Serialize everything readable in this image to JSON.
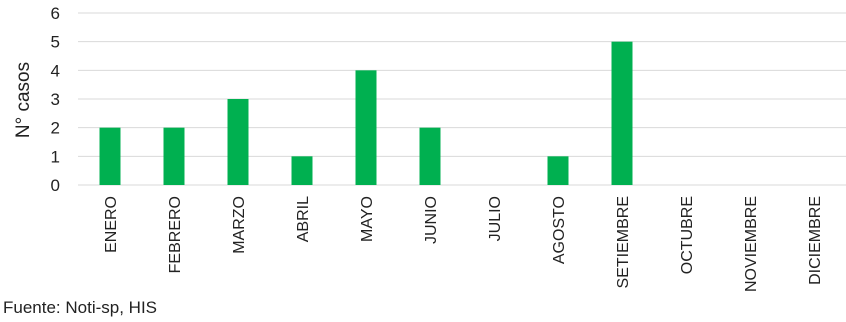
{
  "chart_data": {
    "type": "bar",
    "categories": [
      "ENERO",
      "FEBRERO",
      "MARZO",
      "ABRIL",
      "MAYO",
      "JUNIO",
      "JULIO",
      "AGOSTO",
      "SETIEMBRE",
      "OCTUBRE",
      "NOVIEMBRE",
      "DICIEMBRE"
    ],
    "values": [
      2,
      2,
      3,
      1,
      4,
      2,
      0,
      1,
      5,
      0,
      0,
      0
    ],
    "ylabel": "N° casos",
    "xlabel": "",
    "ylim": [
      0,
      6
    ],
    "yticks": [
      0,
      1,
      2,
      3,
      4,
      5,
      6
    ],
    "grid": true,
    "bar_color": "#00B050",
    "grid_color": "#d9d9d9"
  },
  "source_note": "Fuente: Noti-sp, HIS"
}
